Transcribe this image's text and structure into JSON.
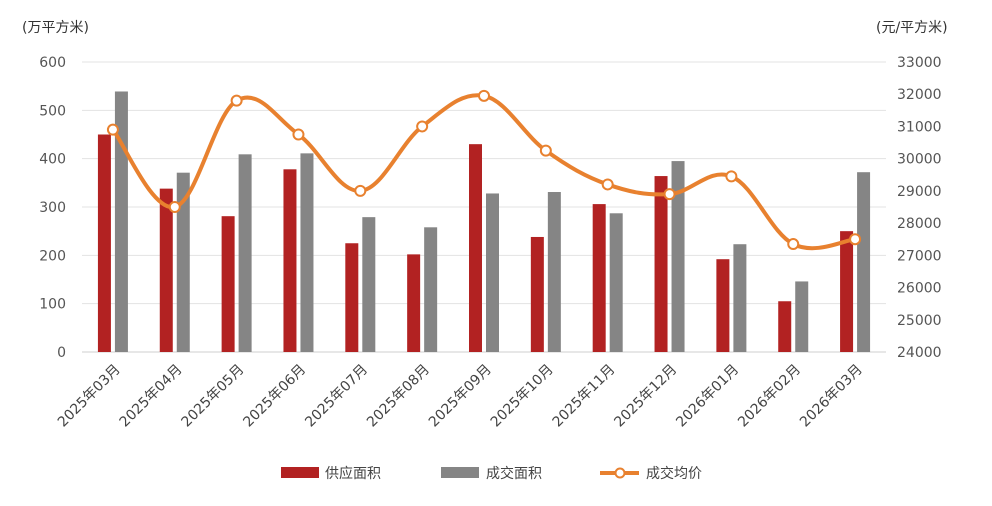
{
  "chart_data": {
    "type": "bar+line",
    "categories": [
      "2025年03月",
      "2025年04月",
      "2025年05月",
      "2025年06月",
      "2025年07月",
      "2025年08月",
      "2025年09月",
      "2025年10月",
      "2025年11月",
      "2025年12月",
      "2026年01月",
      "2026年02月",
      "2026年03月"
    ],
    "left_axis": {
      "unit": "(万平方米)",
      "range": [
        0,
        600
      ],
      "ticks": [
        "0",
        "100",
        "200",
        "300",
        "400",
        "500",
        "600"
      ]
    },
    "right_axis": {
      "unit": "(元/平方米)",
      "range": [
        24000,
        33000
      ],
      "ticks": [
        "24000",
        "25000",
        "26000",
        "27000",
        "28000",
        "29000",
        "30000",
        "31000",
        "32000",
        "33000"
      ]
    },
    "series": [
      {
        "name": "供应面积",
        "type": "bar",
        "axis": "left",
        "color": "#b22222",
        "values": [
          450,
          338,
          281,
          378,
          225,
          202,
          430,
          238,
          306,
          364,
          192,
          105,
          250
        ]
      },
      {
        "name": "成交面积",
        "type": "bar",
        "axis": "left",
        "color": "#858585",
        "values": [
          539,
          371,
          409,
          411,
          279,
          258,
          328,
          331,
          287,
          395,
          223,
          146,
          372
        ]
      },
      {
        "name": "成交均价",
        "type": "line",
        "axis": "right",
        "color": "#e8812f",
        "values": [
          30900,
          28500,
          31800,
          30750,
          29000,
          31000,
          31950,
          30250,
          29200,
          28900,
          29450,
          27350,
          27500
        ]
      }
    ],
    "legend_position": "bottom",
    "grid": true
  }
}
